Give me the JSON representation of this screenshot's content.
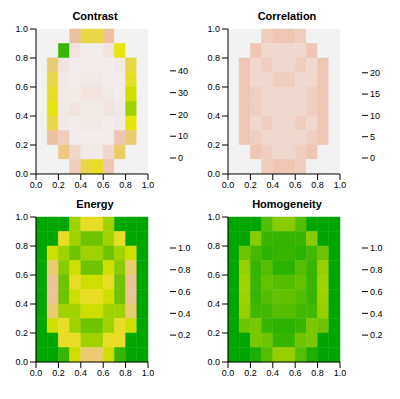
{
  "chart_data": [
    {
      "type": "heatmap",
      "title": "Contrast",
      "xlim": [
        0,
        1
      ],
      "ylim": [
        0,
        1
      ],
      "xticks": [
        {
          "value": 0,
          "label": "0.0"
        },
        {
          "value": 0.2,
          "label": "0.2"
        },
        {
          "value": 0.4,
          "label": "0.4"
        },
        {
          "value": 0.6,
          "label": "0.6"
        },
        {
          "value": 0.8,
          "label": "0.8"
        },
        {
          "value": 1,
          "label": "1.0"
        }
      ],
      "yticks": [
        {
          "value": 0,
          "label": "0.0"
        },
        {
          "value": 0.2,
          "label": "0.2"
        },
        {
          "value": 0.4,
          "label": "0.4"
        },
        {
          "value": 0.6,
          "label": "0.6"
        },
        {
          "value": 0.8,
          "label": "0.8"
        },
        {
          "value": 1,
          "label": "1.0"
        }
      ],
      "x_edges": [
        0,
        0.1,
        0.2,
        0.3,
        0.4,
        0.5,
        0.6,
        0.7,
        0.8,
        0.9,
        1
      ],
      "y_edges": [
        1,
        0.9,
        0.8,
        0.7,
        0.6,
        0.5,
        0.4,
        0.3,
        0.2,
        0.1,
        0
      ],
      "cells": [
        [
          0,
          0,
          0,
          12,
          18,
          18,
          12,
          0,
          0,
          0
        ],
        [
          0,
          0,
          40,
          3,
          1,
          1,
          3,
          22,
          0,
          0
        ],
        [
          0,
          15,
          3,
          1,
          1,
          1,
          1,
          2,
          18,
          0
        ],
        [
          0,
          18,
          2,
          1,
          2,
          2,
          1,
          1,
          20,
          0
        ],
        [
          0,
          20,
          2,
          2,
          3,
          3,
          2,
          1,
          25,
          0
        ],
        [
          0,
          22,
          2,
          3,
          2,
          2,
          3,
          2,
          30,
          0
        ],
        [
          0,
          18,
          2,
          1,
          2,
          2,
          1,
          2,
          22,
          0
        ],
        [
          0,
          12,
          8,
          1,
          1,
          1,
          1,
          10,
          15,
          0
        ],
        [
          0,
          0,
          14,
          6,
          2,
          2,
          6,
          16,
          0,
          0
        ],
        [
          0,
          0,
          0,
          8,
          18,
          20,
          10,
          0,
          0,
          0
        ]
      ],
      "colorbar": {
        "range": [
          0,
          45
        ],
        "ticks": [
          0,
          10,
          20,
          30,
          40
        ]
      },
      "colors": [
        "#F2F2F2",
        "#EEBEAA",
        "#E6E600",
        "#7CC800",
        "#00A600"
      ]
    },
    {
      "type": "heatmap",
      "title": "Correlation",
      "xlim": [
        0,
        1
      ],
      "ylim": [
        0,
        1
      ],
      "xticks": [
        {
          "value": 0,
          "label": "0.0"
        },
        {
          "value": 0.2,
          "label": "0.2"
        },
        {
          "value": 0.4,
          "label": "0.4"
        },
        {
          "value": 0.6,
          "label": "0.6"
        },
        {
          "value": 0.8,
          "label": "0.8"
        },
        {
          "value": 1,
          "label": "1.0"
        }
      ],
      "yticks": [
        {
          "value": 0,
          "label": "0.0"
        },
        {
          "value": 0.2,
          "label": "0.2"
        },
        {
          "value": 0.4,
          "label": "0.4"
        },
        {
          "value": 0.6,
          "label": "0.6"
        },
        {
          "value": 0.8,
          "label": "0.8"
        },
        {
          "value": 1,
          "label": "1.0"
        }
      ],
      "x_edges": [
        0,
        0.1,
        0.2,
        0.3,
        0.4,
        0.5,
        0.6,
        0.7,
        0.8,
        0.9,
        1
      ],
      "y_edges": [
        1,
        0.9,
        0.8,
        0.7,
        0.6,
        0.5,
        0.4,
        0.3,
        0.2,
        0.1,
        0
      ],
      "cells": [
        [
          0,
          0,
          0,
          4,
          5,
          5,
          4,
          0,
          0,
          0
        ],
        [
          0,
          0,
          5,
          3,
          3,
          3,
          3,
          5,
          0,
          0
        ],
        [
          0,
          5,
          3,
          4,
          3,
          3,
          4,
          3,
          5,
          0
        ],
        [
          0,
          5,
          3,
          3,
          4,
          4,
          3,
          3,
          5,
          0
        ],
        [
          0,
          5,
          4,
          3,
          3,
          3,
          3,
          4,
          5,
          0
        ],
        [
          0,
          5,
          4,
          3,
          3,
          3,
          3,
          4,
          5,
          0
        ],
        [
          0,
          5,
          3,
          4,
          3,
          3,
          4,
          3,
          5,
          0
        ],
        [
          0,
          5,
          4,
          3,
          3,
          3,
          3,
          4,
          5,
          0
        ],
        [
          0,
          0,
          5,
          4,
          3,
          3,
          4,
          5,
          0,
          0
        ],
        [
          0,
          0,
          0,
          4,
          5,
          5,
          4,
          0,
          0,
          0
        ]
      ],
      "colorbar": {
        "range": [
          0,
          23
        ],
        "ticks": [
          0,
          5,
          10,
          15,
          20
        ]
      },
      "colors": [
        "#F2F2F2",
        "#EEBEAA",
        "#E6E600",
        "#7CC800",
        "#00A600"
      ]
    },
    {
      "type": "heatmap",
      "title": "Energy",
      "xlim": [
        0,
        1
      ],
      "ylim": [
        0,
        1
      ],
      "xticks": [
        {
          "value": 0,
          "label": "0.0"
        },
        {
          "value": 0.2,
          "label": "0.2"
        },
        {
          "value": 0.4,
          "label": "0.4"
        },
        {
          "value": 0.6,
          "label": "0.6"
        },
        {
          "value": 0.8,
          "label": "0.8"
        },
        {
          "value": 1,
          "label": "1.0"
        }
      ],
      "yticks": [
        {
          "value": 0,
          "label": "0.0"
        },
        {
          "value": 0.2,
          "label": "0.2"
        },
        {
          "value": 0.4,
          "label": "0.4"
        },
        {
          "value": 0.6,
          "label": "0.6"
        },
        {
          "value": 0.8,
          "label": "0.8"
        },
        {
          "value": 1,
          "label": "1.0"
        }
      ],
      "x_edges": [
        0,
        0.1,
        0.2,
        0.3,
        0.4,
        0.5,
        0.6,
        0.7,
        0.8,
        0.9,
        1
      ],
      "y_edges": [
        1,
        0.9,
        0.8,
        0.7,
        0.6,
        0.5,
        0.4,
        0.3,
        0.2,
        0.1,
        0
      ],
      "cells": [
        [
          1,
          1,
          1,
          0.7,
          0.5,
          0.5,
          0.7,
          1,
          1,
          1
        ],
        [
          1,
          1,
          0.5,
          0.7,
          0.8,
          0.8,
          0.7,
          0.5,
          1,
          1
        ],
        [
          1,
          0.6,
          0.7,
          0.8,
          0.7,
          0.7,
          0.8,
          0.7,
          0.6,
          1
        ],
        [
          1,
          0.4,
          0.75,
          0.6,
          0.8,
          0.8,
          0.6,
          0.75,
          0.4,
          1
        ],
        [
          1,
          0.35,
          0.8,
          0.5,
          0.6,
          0.6,
          0.5,
          0.8,
          0.35,
          1
        ],
        [
          1,
          0.35,
          0.8,
          0.6,
          0.5,
          0.5,
          0.6,
          0.8,
          0.35,
          1
        ],
        [
          1,
          0.4,
          0.7,
          0.7,
          0.6,
          0.6,
          0.7,
          0.7,
          0.4,
          1
        ],
        [
          1,
          0.6,
          0.5,
          0.7,
          0.8,
          0.8,
          0.7,
          0.5,
          0.6,
          1
        ],
        [
          1,
          1,
          0.5,
          0.5,
          0.7,
          0.7,
          0.5,
          0.5,
          1,
          1
        ],
        [
          1,
          1,
          0.9,
          0.6,
          0.4,
          0.4,
          0.6,
          0.9,
          1,
          1
        ]
      ],
      "colorbar": {
        "range": [
          0.1,
          1
        ],
        "ticks": [
          0.2,
          0.4,
          0.6,
          0.8,
          {
            "value": 1,
            "label": "1.0"
          }
        ]
      },
      "colors": [
        "#F2F2F2",
        "#EEBEAA",
        "#E6E600",
        "#7CC800",
        "#00A600"
      ]
    },
    {
      "type": "heatmap",
      "title": "Homogeneity",
      "xlim": [
        0,
        1
      ],
      "ylim": [
        0,
        1
      ],
      "xticks": [
        {
          "value": 0,
          "label": "0.0"
        },
        {
          "value": 0.2,
          "label": "0.2"
        },
        {
          "value": 0.4,
          "label": "0.4"
        },
        {
          "value": 0.6,
          "label": "0.6"
        },
        {
          "value": 0.8,
          "label": "0.8"
        },
        {
          "value": 1,
          "label": "1.0"
        }
      ],
      "yticks": [
        {
          "value": 0,
          "label": "0.0"
        },
        {
          "value": 0.2,
          "label": "0.2"
        },
        {
          "value": 0.4,
          "label": "0.4"
        },
        {
          "value": 0.6,
          "label": "0.6"
        },
        {
          "value": 0.8,
          "label": "0.8"
        },
        {
          "value": 1,
          "label": "1.0"
        }
      ],
      "x_edges": [
        0,
        0.1,
        0.2,
        0.3,
        0.4,
        0.5,
        0.6,
        0.7,
        0.8,
        0.9,
        1
      ],
      "y_edges": [
        1,
        0.9,
        0.8,
        0.7,
        0.6,
        0.5,
        0.4,
        0.3,
        0.2,
        0.1,
        0
      ],
      "cells": [
        [
          1,
          1,
          1,
          0.85,
          0.75,
          0.75,
          0.85,
          1,
          1,
          1
        ],
        [
          1,
          1,
          0.75,
          0.9,
          0.9,
          0.9,
          0.9,
          0.75,
          1,
          1
        ],
        [
          1,
          0.8,
          0.88,
          0.92,
          0.9,
          0.9,
          0.92,
          0.88,
          0.8,
          1
        ],
        [
          1,
          0.72,
          0.9,
          0.85,
          0.92,
          0.92,
          0.85,
          0.9,
          0.72,
          1
        ],
        [
          1,
          0.7,
          0.9,
          0.82,
          0.85,
          0.85,
          0.82,
          0.9,
          0.7,
          1
        ],
        [
          1,
          0.7,
          0.9,
          0.85,
          0.82,
          0.82,
          0.85,
          0.9,
          0.7,
          1
        ],
        [
          1,
          0.72,
          0.88,
          0.88,
          0.85,
          0.85,
          0.88,
          0.88,
          0.72,
          1
        ],
        [
          1,
          0.8,
          0.78,
          0.9,
          0.92,
          0.92,
          0.9,
          0.78,
          0.8,
          1
        ],
        [
          1,
          1,
          0.78,
          0.8,
          0.9,
          0.9,
          0.8,
          0.78,
          1,
          1
        ],
        [
          1,
          1,
          0.95,
          0.85,
          0.72,
          0.72,
          0.85,
          0.95,
          1,
          1
        ]
      ],
      "colorbar": {
        "range": [
          0.1,
          1
        ],
        "ticks": [
          0.2,
          0.4,
          0.6,
          0.8,
          {
            "value": 1,
            "label": "1.0"
          }
        ]
      },
      "colors": [
        "#F2F2F2",
        "#EEBEAA",
        "#E6E600",
        "#7CC800",
        "#00A600"
      ]
    }
  ]
}
